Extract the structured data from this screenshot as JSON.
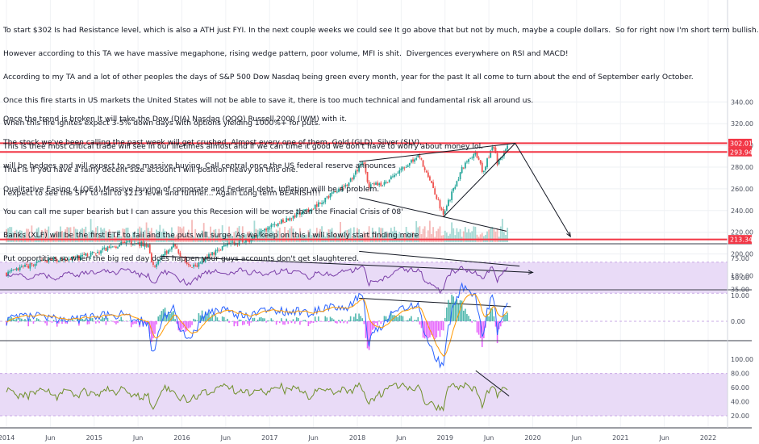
{
  "annotations": {
    "top_lines": [
      "To start $302 Is had Resistance level, which is also a ATH just FYI. In the next couple weeks we could see It go above that but not by much, maybe a couple dollars.  So for right now I'm short term bullish.",
      "However according to this TA we have massive megaphone, rising wedge pattern, poor volume, MFI is shit.  Divergences everywhere on RSI and MACD!",
      "According to my TA and a lot of other peoples the days of S&P 500 Dow Nasdaq being green every month, year for the past It all come to turn about the end of September early October.",
      "Once this fire starts in US markets the United States will not be able to save it, there is too much technical and fundamental risk all around us.",
      "When this fire ignites expect 3-5% down days with options yielding 1000%+ for puts.",
      "This is thee most critical trade will see in our lifetimes almost and if we can time it good we don't have to worry about money lol.",
      "That is If you have a fairly decent size account I will position heavy on this one.",
      "I expect to see the SPY to fall to $213 level and further... Again Long term BEARISH!!!"
    ],
    "mid_lines": [
      "Once the trend is broken It will take the Dow (DIA) Nasdaq (QQQ) Russell 2000 (IWM) with it.",
      "The stock we've been calling the past week will get crushed. Almost every one of them. Gold (GLD), Silver (SLV),",
      "will be hedges and will expect to see massive buying. Call central once the US federal reserve announces",
      "Qualitative Easing 4 (QE4) Massive buying of corporate and Federal debt. Inflation willl be a problem.",
      "You can call me super bearish but I can assure you this Recesion will be worse than the Finacial Crisis of 08'",
      "Banks (XLF) will be the first ETF to fail and the puts will surge. As we keep on this I will slowly start finding more",
      "Put opportities so when the big red day does happen your guys accounts don't get slaughtered."
    ]
  },
  "price_tags": [
    {
      "label": "302.01",
      "value": 302.01,
      "color": "#f23645"
    },
    {
      "label": "293.94",
      "value": 293.94,
      "color": "#f23645"
    },
    {
      "label": "213.34",
      "value": 213.34,
      "color": "#f23645"
    }
  ],
  "colors": {
    "up": "#26a69a",
    "down": "#ef5350",
    "resistance": "#f23645",
    "trend": "#131722",
    "band": "#e9dbf7",
    "rsi": "#7b3fa8",
    "macd": "#2962ff",
    "signal": "#ff9800",
    "mfi": "#6f8f2a"
  },
  "chart_data": [
    {
      "type": "candlestick",
      "title": "",
      "y_axis_labels": [
        "180.00",
        "200.00",
        "220.00",
        "240.00",
        "260.00",
        "280.00",
        "300.00",
        "320.00",
        "340.00"
      ],
      "ylim": [
        170,
        348
      ],
      "x_axis_labels": [
        "2014",
        "Jun",
        "2015",
        "Jun",
        "2016",
        "Jun",
        "2017",
        "Jun",
        "2018",
        "Jun",
        "2019",
        "Jun",
        "2020",
        "Jun",
        "2021",
        "Jun",
        "2022"
      ],
      "weekly_close_anchors": [
        {
          "t": 2014.0,
          "v": 182
        },
        {
          "t": 2014.4,
          "v": 193
        },
        {
          "t": 2014.8,
          "v": 196
        },
        {
          "t": 2015.1,
          "v": 204
        },
        {
          "t": 2015.4,
          "v": 211
        },
        {
          "t": 2015.62,
          "v": 208
        },
        {
          "t": 2015.67,
          "v": 188
        },
        {
          "t": 2015.9,
          "v": 209
        },
        {
          "t": 2016.1,
          "v": 186
        },
        {
          "t": 2016.5,
          "v": 209
        },
        {
          "t": 2016.8,
          "v": 213
        },
        {
          "t": 2017.0,
          "v": 225
        },
        {
          "t": 2017.5,
          "v": 243
        },
        {
          "t": 2017.9,
          "v": 265
        },
        {
          "t": 2018.07,
          "v": 286
        },
        {
          "t": 2018.12,
          "v": 262
        },
        {
          "t": 2018.3,
          "v": 265
        },
        {
          "t": 2018.7,
          "v": 291
        },
        {
          "t": 2018.84,
          "v": 266
        },
        {
          "t": 2018.98,
          "v": 236
        },
        {
          "t": 2019.2,
          "v": 280
        },
        {
          "t": 2019.35,
          "v": 294
        },
        {
          "t": 2019.43,
          "v": 276
        },
        {
          "t": 2019.55,
          "v": 300
        },
        {
          "t": 2019.6,
          "v": 283
        },
        {
          "t": 2019.7,
          "v": 298
        }
      ],
      "trendlines": [
        {
          "from": [
            2018.02,
            285
          ],
          "to": [
            2019.8,
            302
          ]
        },
        {
          "from": [
            2018.02,
            252
          ],
          "to": [
            2019.7,
            221
          ]
        },
        {
          "from": [
            2018.98,
            234
          ],
          "to": [
            2019.8,
            302
          ]
        },
        {
          "from": [
            2019.8,
            302
          ],
          "to": [
            2020.43,
            216
          ]
        },
        {
          "from": [
            2015.75,
            198
          ],
          "to": [
            2020.0,
            183
          ]
        }
      ],
      "horizontal_levels": [
        302.01,
        293.94,
        213.34
      ]
    },
    {
      "type": "line",
      "title": "",
      "y_axis_labels": [
        "35.00",
        "50.00",
        "75.00"
      ],
      "ylim": [
        35,
        86
      ],
      "band": [
        30,
        70
      ]
    },
    {
      "type": "line",
      "title": "",
      "y_axis_labels": [
        "0.00",
        "10.00"
      ],
      "ylim": [
        -10,
        12
      ]
    },
    {
      "type": "line",
      "title": "",
      "y_axis_labels": [
        "20.00",
        "40.00",
        "60.00",
        "80.00",
        "100.00"
      ],
      "ylim": [
        8,
        103
      ],
      "band": [
        20,
        80
      ]
    }
  ]
}
